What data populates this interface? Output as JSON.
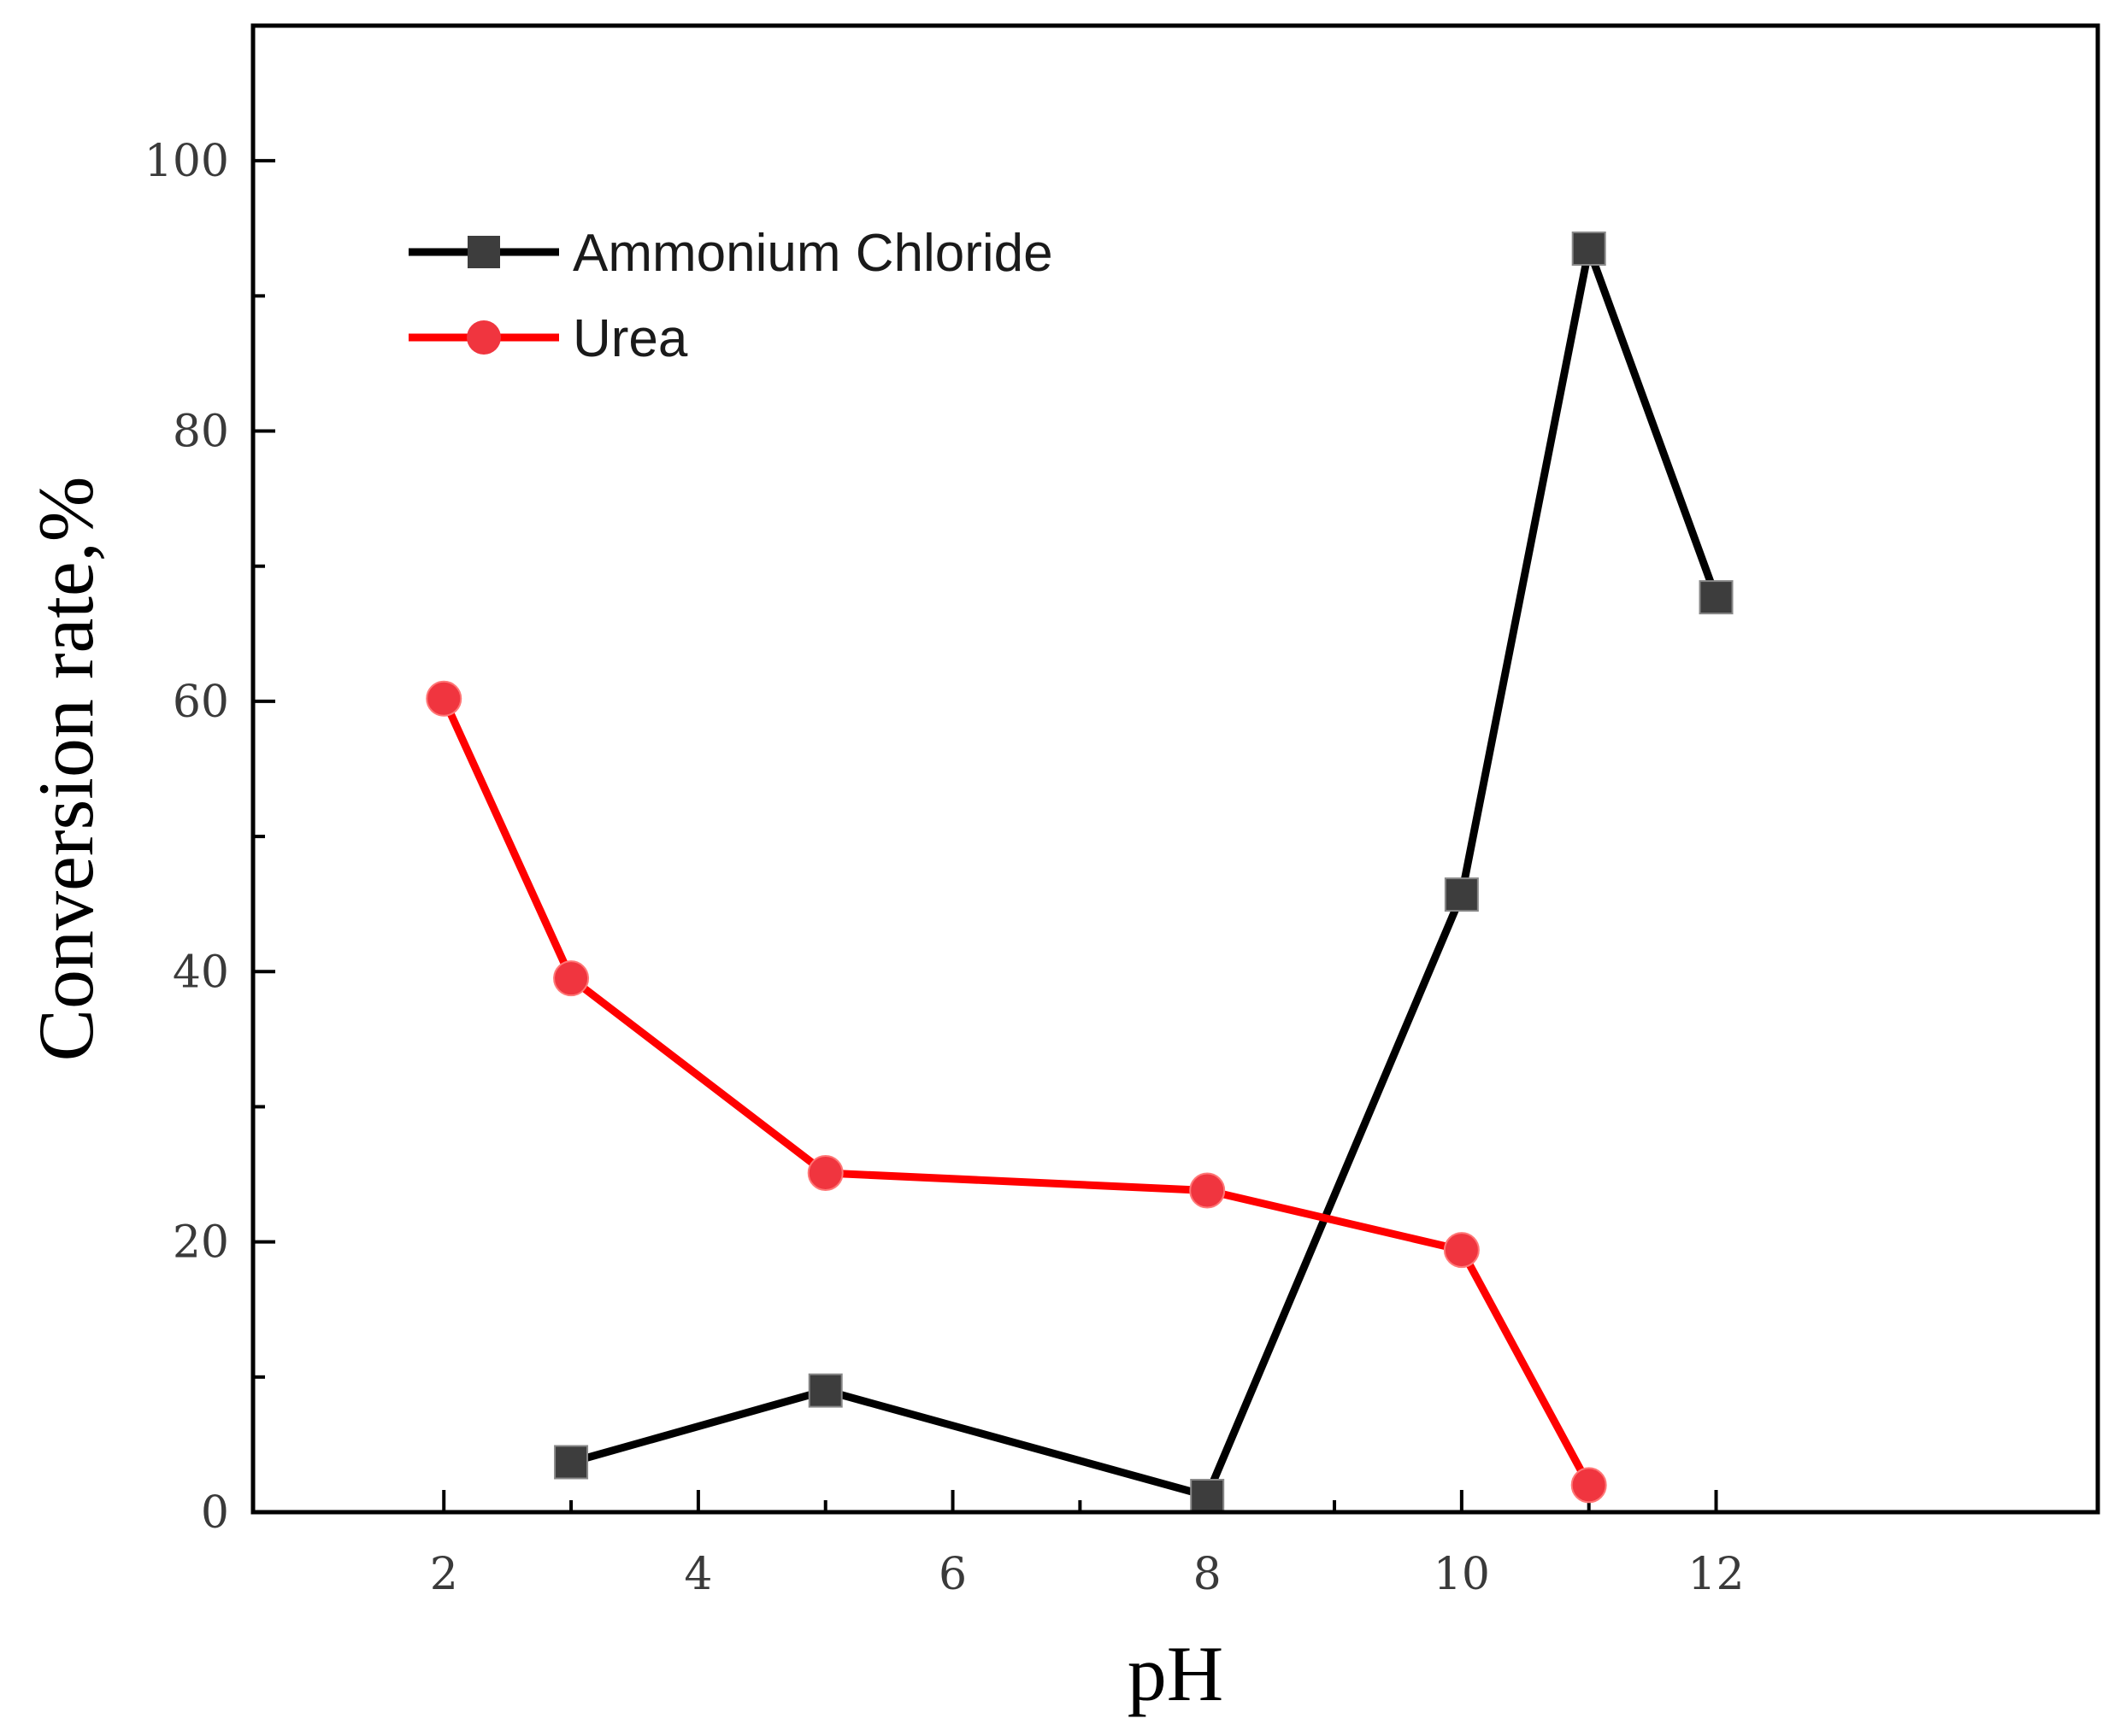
{
  "chart_data": {
    "type": "line",
    "title": "",
    "xlabel": "pH",
    "ylabel": "Conversion rate,%",
    "xlim": [
      0.5,
      15
    ],
    "ylim": [
      0,
      110
    ],
    "xticks": [
      2,
      4,
      6,
      8,
      10,
      12
    ],
    "xtick_labels": [
      "2",
      "4",
      "6",
      "8",
      "10",
      "12"
    ],
    "yticks": [
      0,
      20,
      40,
      60,
      80,
      100
    ],
    "ytick_labels": [
      "0",
      "20",
      "40",
      "60",
      "80",
      "100"
    ],
    "grid": false,
    "legend_position": "top-left",
    "series": [
      {
        "name": "Ammonium Chloride",
        "color": "#000000",
        "marker_color": "#3d3d3d",
        "marker": "square",
        "x": [
          3,
          5,
          8,
          10,
          11,
          12
        ],
        "values": [
          3.7,
          9.0,
          1.2,
          45.7,
          93.5,
          67.7
        ]
      },
      {
        "name": "Urea",
        "color": "#ff0000",
        "marker_color": "#f0353f",
        "marker": "circle",
        "x": [
          2,
          3,
          5,
          8,
          10,
          11
        ],
        "values": [
          60.2,
          39.5,
          25.1,
          23.8,
          19.4,
          2.0
        ]
      }
    ]
  }
}
